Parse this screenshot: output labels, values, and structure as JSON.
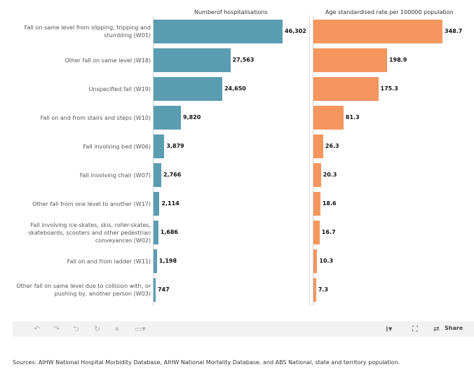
{
  "chart_data": [
    {
      "type": "bar",
      "orientation": "horizontal",
      "title": "Numberof hospitalisations",
      "categories": [
        "Fall on same level from slipping, tripping and stumbling (W01)",
        "Other fall on same level (W18)",
        "Unspecified fall (W19)",
        "Fall on and from stairs and steps (W10)",
        "Fall involving bed (W06)",
        "Fall involving chair (W07)",
        "Other fall from one level to another (W17)",
        "Fall involving ice-skates, skis, roller-skates, skateboards, scooters and other pedestrian conveyances (W02)",
        "Fall on and from ladder (W11)",
        "Other fall on same level due to collision with, or pushing by, another person (W03)"
      ],
      "values": [
        46302,
        27563,
        24650,
        9820,
        3879,
        2766,
        2114,
        1686,
        1198,
        747
      ],
      "value_labels": [
        "46,302",
        "27,563",
        "24,650",
        "9,820",
        "3,879",
        "2,766",
        "2,114",
        "1,686",
        "1,198",
        "747"
      ],
      "color": "#5b9db0",
      "xlim": [
        0,
        50000
      ],
      "grid": false
    },
    {
      "type": "bar",
      "orientation": "horizontal",
      "title": "Age standardised rate per 100000 population",
      "values": [
        348.7,
        198.9,
        175.3,
        81.3,
        26.3,
        20.3,
        18.6,
        16.7,
        10.3,
        7.3
      ],
      "value_labels": [
        "348.7",
        "198.9",
        "175.3",
        "81.3",
        "26.3",
        "20.3",
        "18.6",
        "16.7",
        "10.3",
        "7.3"
      ],
      "color": "#f4965e",
      "xlim": [
        0,
        380
      ],
      "grid": false
    }
  ],
  "toolbar": {
    "undo_icon": "undo-icon",
    "redo_icon": "redo-icon",
    "revert_icon": "revert-icon",
    "refresh_icon": "refresh-icon",
    "pause_icon": "pause-icon",
    "comment_icon": "comment-icon",
    "download_icon": "download-icon",
    "fullscreen_icon": "fullscreen-icon",
    "share_icon": "share-icon",
    "share_label": "Share"
  },
  "footer": {
    "sources": "Sources: AIHW National Hospital Morbidity Database, AIHW National Mortality Database. and ABS National, state and territory population."
  }
}
